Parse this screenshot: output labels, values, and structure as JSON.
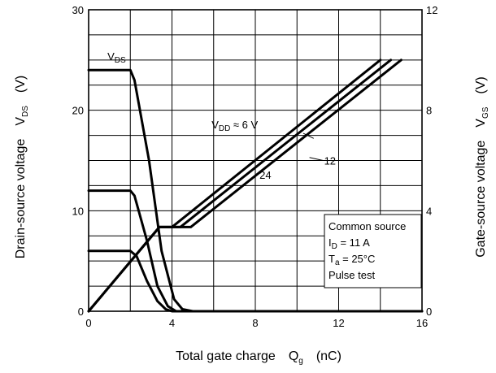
{
  "chart_data": {
    "type": "line",
    "xlabel": {
      "text": "Total gate charge",
      "symbol": "Q",
      "symbol_sub": "g",
      "unit": "(nC)"
    },
    "ylabel_left": {
      "text": "Drain-source voltage",
      "symbol": "V",
      "symbol_sub": "DS",
      "unit": "(V)"
    },
    "ylabel_right": {
      "text": "Gate-source voltage",
      "symbol": "V",
      "symbol_sub": "GS",
      "unit": "(V)"
    },
    "xlim": [
      0,
      16
    ],
    "ylim_left": [
      0,
      30
    ],
    "ylim_right": [
      0,
      12
    ],
    "x_ticks": [
      "0",
      "4",
      "8",
      "12",
      "16"
    ],
    "y_left_ticks": [
      "0",
      "10",
      "20",
      "30"
    ],
    "y_right_ticks": [
      "0",
      "4",
      "8",
      "12"
    ],
    "grid": true,
    "line_color": "#000000",
    "series": [
      {
        "name": "",
        "axis": "left",
        "points": [
          [
            0,
            24
          ],
          [
            2.0,
            24
          ],
          [
            2.2,
            23
          ],
          [
            2.9,
            15
          ],
          [
            3.5,
            6
          ],
          [
            4.1,
            1.2
          ],
          [
            4.5,
            0.2
          ],
          [
            5.0,
            0
          ],
          [
            16,
            0
          ]
        ]
      },
      {
        "name": "",
        "axis": "left",
        "points": [
          [
            0,
            12
          ],
          [
            2.0,
            12
          ],
          [
            2.2,
            11.5
          ],
          [
            2.8,
            7
          ],
          [
            3.3,
            2.5
          ],
          [
            3.8,
            0.5
          ],
          [
            4.2,
            0
          ],
          [
            16,
            0
          ]
        ]
      },
      {
        "name": "",
        "axis": "left",
        "points": [
          [
            0,
            6
          ],
          [
            2.0,
            6
          ],
          [
            2.3,
            5.5
          ],
          [
            2.8,
            3
          ],
          [
            3.3,
            1
          ],
          [
            3.7,
            0.2
          ],
          [
            4.0,
            0
          ],
          [
            16,
            0
          ]
        ]
      },
      {
        "name": "",
        "axis": "right",
        "points": [
          [
            0,
            0
          ],
          [
            3.4,
            3.35
          ],
          [
            4.0,
            3.35
          ],
          [
            14.0,
            10
          ]
        ]
      },
      {
        "name": "",
        "axis": "right",
        "points": [
          [
            0,
            0
          ],
          [
            3.4,
            3.35
          ],
          [
            4.4,
            3.35
          ],
          [
            14.5,
            10
          ]
        ]
      },
      {
        "name": "",
        "axis": "right",
        "points": [
          [
            0,
            0
          ],
          [
            3.4,
            3.35
          ],
          [
            4.9,
            3.35
          ],
          [
            15.0,
            10
          ]
        ]
      }
    ],
    "annotations": [
      {
        "text": "V",
        "sub": "DS",
        "x": 0.9,
        "y": 25.0,
        "axis": "left",
        "anchor": "start"
      },
      {
        "text": "V",
        "sub": "DD",
        "suffix": " ≈ 6 V",
        "x": 5.9,
        "y": 18.2,
        "axis": "left",
        "anchor": "start"
      },
      {
        "text": "12",
        "x": 11.3,
        "y": 14.6,
        "axis": "left",
        "anchor": "start"
      },
      {
        "text": "24",
        "x": 8.2,
        "y": 13.2,
        "axis": "left",
        "anchor": "start"
      }
    ],
    "leaders": [
      {
        "from": [
          10.3,
          17.7
        ],
        "to": [
          10.8,
          17.2
        ]
      },
      {
        "from": [
          10.6,
          15.3
        ],
        "to": [
          11.25,
          15.0
        ]
      }
    ],
    "conditions_box": {
      "lines": [
        {
          "text": "Common source"
        },
        {
          "text": "I",
          "sub": "D",
          "suffix": " = 11 A"
        },
        {
          "text": "T",
          "sub": "a",
          "suffix": " = 25°C"
        },
        {
          "text": "Pulse test"
        }
      ]
    }
  }
}
